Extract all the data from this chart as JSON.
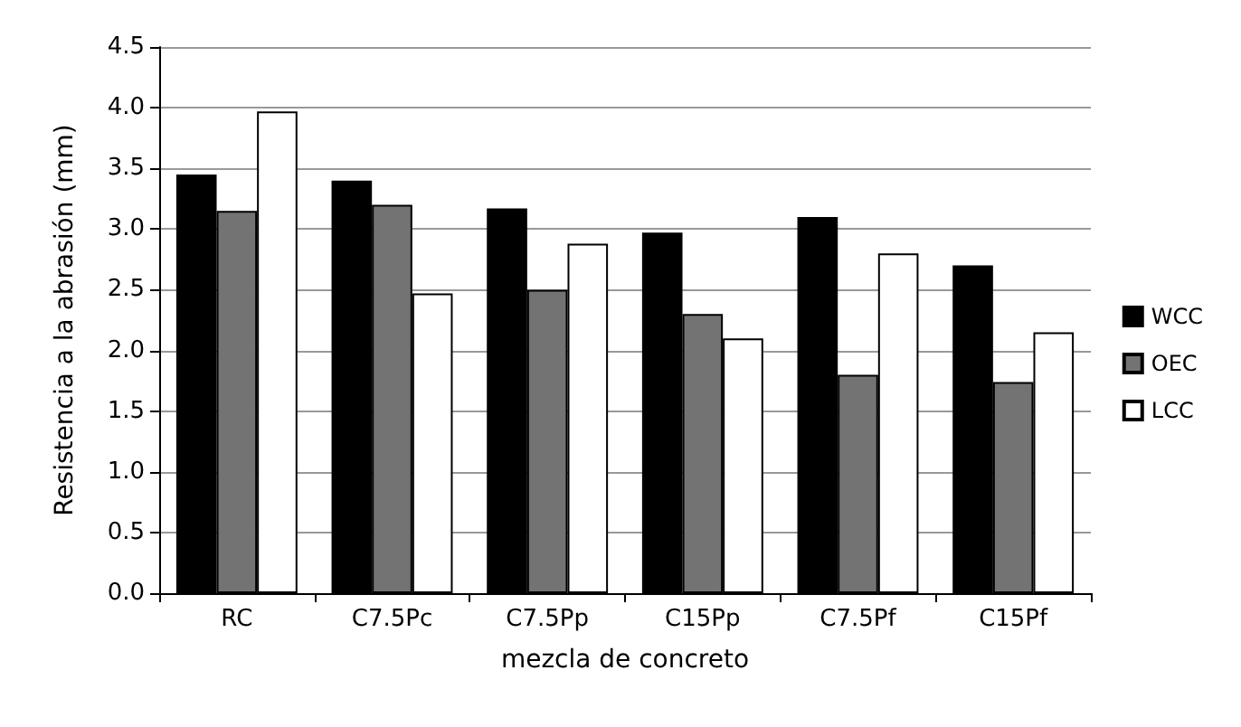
{
  "chart_data": {
    "type": "bar",
    "xlabel": "mezcla de concreto",
    "ylabel": "Resistencia a la abrasión (mm)",
    "categories": [
      "RC",
      "C7.5Pc",
      "C7.5Pp",
      "C15Pp",
      "C7.5Pf",
      "C15Pf"
    ],
    "series": [
      {
        "name": "WCC",
        "color": "#000000",
        "values": [
          3.45,
          3.4,
          3.17,
          2.97,
          3.1,
          2.7
        ]
      },
      {
        "name": "OEC",
        "color": "#737373",
        "values": [
          3.15,
          3.2,
          2.5,
          2.3,
          1.8,
          1.74
        ]
      },
      {
        "name": "LCC",
        "color": "#ffffff",
        "values": [
          3.97,
          2.47,
          2.88,
          2.1,
          2.8,
          2.15
        ]
      }
    ],
    "ylim": [
      0,
      4.5
    ],
    "yticks": [
      {
        "value": 0,
        "label": "0.0"
      },
      0.5,
      {
        "value": 1,
        "label": "1.0"
      },
      1.5,
      {
        "value": 2,
        "label": "2.0"
      },
      2.5,
      {
        "value": 3,
        "label": "3.0"
      },
      3.5,
      {
        "value": 4,
        "label": "4.0"
      },
      4.5
    ],
    "grid": "y",
    "legend": "right"
  }
}
